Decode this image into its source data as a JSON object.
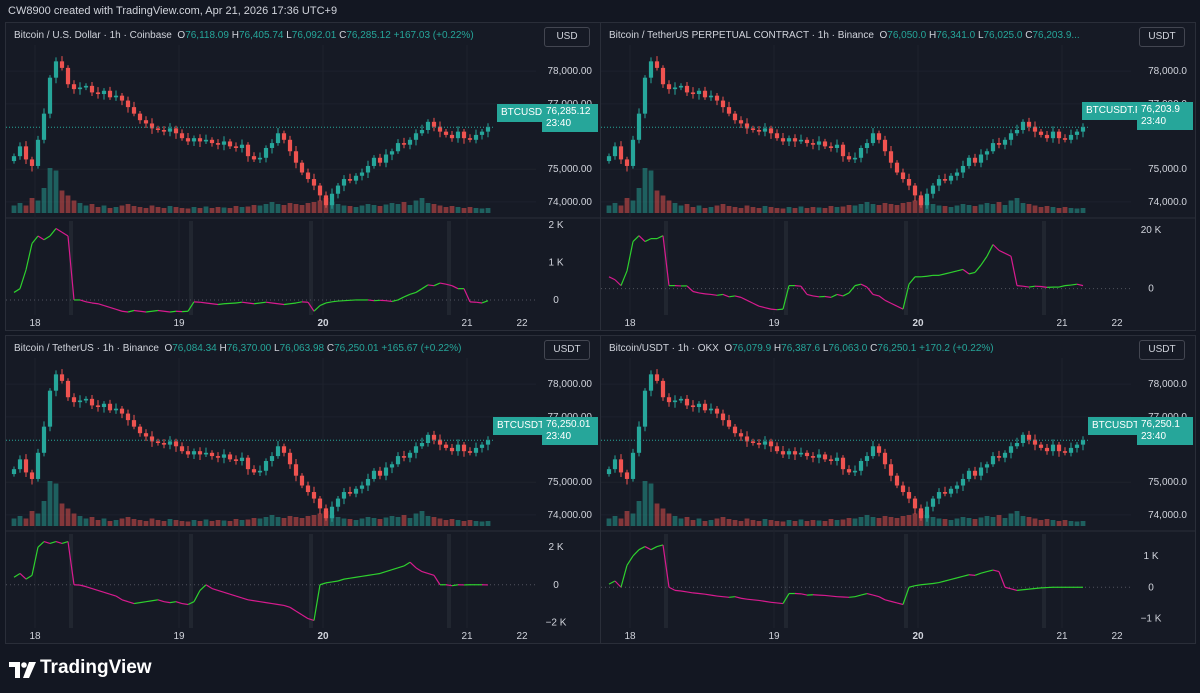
{
  "header": {
    "caption": "CW8900 created with TradingView.com, Apr 21, 2026 17:36 UTC+9"
  },
  "colors": {
    "up": "#26a69a",
    "down": "#ef5350",
    "osc_up": "#2ed12e",
    "osc_down": "#d81b8f",
    "grid": "#1e222d",
    "text": "#d1d4dc",
    "bg": "#161a25"
  },
  "x_labels": [
    "18",
    "19",
    "20",
    "21",
    "22"
  ],
  "panels": [
    {
      "title": "Bitcoin / U.S. Dollar · 1h · Coinbase",
      "o": "76,118.09",
      "h": "76,405.74",
      "l": "76,092.01",
      "c": "76,285.12",
      "change": "+167.03 (+0.22%)",
      "currency": "USD",
      "symbol": "BTCUSD",
      "last_price": "76,285.12",
      "countdown": "23:40",
      "price_labels": [
        "78,000.00",
        "77,000.00",
        "75,000.00",
        "74,000.00"
      ],
      "price_levels": [
        78000,
        77000,
        75000,
        74000
      ],
      "osc_labels": [
        "2 K",
        "1 K",
        "0"
      ],
      "osc_levels": [
        2000,
        1000,
        0
      ],
      "osc_max": 2100,
      "osc_min": -400
    },
    {
      "title": "Bitcoin / TetherUS PERPETUAL CONTRACT · 1h · Binance",
      "o": "76,050.0",
      "h": "76,341.0",
      "l": "76,025.0",
      "c": "76,203.9...",
      "change": "",
      "currency": "USDT",
      "symbol": "BTCUSDT.P",
      "last_price": "76,203.9",
      "countdown": "23:40",
      "price_labels": [
        "78,000.0",
        "77,000.0",
        "75,000.0",
        "74,000.0"
      ],
      "price_levels": [
        78000,
        77000,
        75000,
        74000
      ],
      "osc_labels": [
        "20 K",
        "0"
      ],
      "osc_levels": [
        20000,
        0
      ],
      "osc_max": 23000,
      "osc_min": -9000
    },
    {
      "title": "Bitcoin / TetherUS · 1h · Binance",
      "o": "76,084.34",
      "h": "76,370.00",
      "l": "76,063.98",
      "c": "76,250.01",
      "change": "+165.67 (+0.22%)",
      "currency": "USDT",
      "symbol": "BTCUSDT",
      "last_price": "76,250.01",
      "countdown": "23:40",
      "price_labels": [
        "78,000.00",
        "77,000.00",
        "75,000.00",
        "74,000.00"
      ],
      "price_levels": [
        78000,
        77000,
        75000,
        74000
      ],
      "osc_labels": [
        "2 K",
        "0",
        "−2 K"
      ],
      "osc_levels": [
        2000,
        0,
        -2000
      ],
      "osc_max": 2700,
      "osc_min": -2300
    },
    {
      "title": "Bitcoin/USDT · 1h · OKX",
      "o": "76,079.9",
      "h": "76,387.6",
      "l": "76,063.0",
      "c": "76,250.1",
      "change": "+170.2 (+0.22%)",
      "currency": "USDT",
      "symbol": "BTCUSDT",
      "last_price": "76,250.1",
      "countdown": "23:40",
      "price_labels": [
        "78,000.0",
        "77,000.0",
        "75,000.0",
        "74,000.0"
      ],
      "price_levels": [
        78000,
        77000,
        75000,
        74000
      ],
      "osc_labels": [
        "1 K",
        "0",
        "−1 K"
      ],
      "osc_levels": [
        1000,
        0,
        -1000
      ],
      "osc_max": 1700,
      "osc_min": -1300
    }
  ],
  "price_series": [
    75400,
    75700,
    75300,
    75100,
    75900,
    76700,
    77800,
    78300,
    78100,
    77600,
    77450,
    77500,
    77550,
    77350,
    77300,
    77400,
    77200,
    77250,
    77100,
    76900,
    76700,
    76500,
    76400,
    76250,
    76200,
    76150,
    76250,
    76100,
    75950,
    75850,
    75950,
    75850,
    75900,
    75800,
    75750,
    75850,
    75700,
    75650,
    75750,
    75400,
    75300,
    75350,
    75650,
    75800,
    76100,
    75900,
    75550,
    75200,
    74900,
    74700,
    74500,
    74200,
    73900,
    74250,
    74500,
    74700,
    74650,
    74800,
    74900,
    75100,
    75350,
    75200,
    75450,
    75550,
    75800,
    75750,
    75900,
    76100,
    76200,
    76450,
    76300,
    76150,
    76050,
    75950,
    76150,
    75950,
    75900,
    76050,
    76150,
    76285
  ],
  "volume_series": [
    0.15,
    0.2,
    0.15,
    0.3,
    0.25,
    0.5,
    0.9,
    0.85,
    0.45,
    0.35,
    0.25,
    0.2,
    0.15,
    0.18,
    0.12,
    0.15,
    0.1,
    0.12,
    0.15,
    0.18,
    0.14,
    0.12,
    0.1,
    0.15,
    0.12,
    0.1,
    0.14,
    0.12,
    0.1,
    0.09,
    0.12,
    0.1,
    0.13,
    0.1,
    0.12,
    0.11,
    0.1,
    0.14,
    0.12,
    0.13,
    0.16,
    0.15,
    0.18,
    0.22,
    0.18,
    0.16,
    0.2,
    0.18,
    0.16,
    0.2,
    0.22,
    0.25,
    0.3,
    0.22,
    0.18,
    0.15,
    0.14,
    0.12,
    0.15,
    0.18,
    0.16,
    0.14,
    0.17,
    0.2,
    0.18,
    0.22,
    0.16,
    0.25,
    0.3,
    0.2,
    0.18,
    0.15,
    0.12,
    0.14,
    0.12,
    0.1,
    0.12,
    0.1,
    0.09,
    0.1
  ],
  "osc_series": [
    [
      200,
      300,
      800,
      1500,
      1700,
      1600,
      1700,
      1900,
      1800,
      1700,
      0,
      0,
      -50,
      -80,
      -100,
      -150,
      -200,
      -250,
      -300,
      -320,
      -280,
      -300,
      -320,
      -300,
      -280,
      -300,
      -320,
      -300,
      -310,
      -300,
      -50,
      -60,
      -80,
      -100,
      -120,
      -100,
      -90,
      -80,
      -60,
      -80,
      -100,
      -80,
      -60,
      -80,
      -100,
      -120,
      -100,
      -80,
      -50,
      -60,
      -300,
      -150,
      -80,
      -50,
      -30,
      -20,
      -10,
      0,
      0,
      0,
      -20,
      -10,
      -20,
      -40,
      0,
      80,
      150,
      200,
      300,
      400,
      380,
      450,
      420,
      380,
      300,
      300,
      -50,
      -60,
      -80,
      -20
    ],
    [
      4000,
      3000,
      1000,
      6000,
      16000,
      18000,
      16000,
      17000,
      17000,
      18000,
      1000,
      1000,
      900,
      900,
      -1000,
      -1500,
      -1800,
      -2000,
      -2300,
      -2000,
      -2800,
      -2500,
      -3000,
      -4000,
      -5000,
      -6000,
      -6500,
      -7000,
      -7200,
      -7000,
      1000,
      1000,
      800,
      -2000,
      -2500,
      -2800,
      -2700,
      -3000,
      -2000,
      -2500,
      -1500,
      1000,
      1500,
      500,
      -2000,
      -2500,
      -4000,
      -5000,
      -6000,
      -7000,
      1500,
      4000,
      4000,
      4200,
      4500,
      4500,
      5000,
      5500,
      6000,
      6500,
      5000,
      5500,
      8000,
      11000,
      15000,
      13000,
      12000,
      11000,
      1000,
      800,
      500,
      800,
      700,
      400,
      500,
      500,
      1000,
      1200,
      1500,
      1000
    ],
    [
      400,
      600,
      300,
      500,
      2000,
      2300,
      2200,
      2300,
      2200,
      2300,
      0,
      -20,
      -100,
      -200,
      -300,
      -400,
      -500,
      -600,
      -800,
      -900,
      -1000,
      -950,
      -900,
      -850,
      -800,
      -900,
      -950,
      -900,
      -1000,
      -1050,
      -900,
      -300,
      0,
      -200,
      -300,
      -400,
      -500,
      -600,
      -700,
      -800,
      -850,
      -900,
      -950,
      -1000,
      -1050,
      -1100,
      -1200,
      -1400,
      -1600,
      -1800,
      -1900,
      0,
      100,
      150,
      200,
      300,
      350,
      400,
      450,
      500,
      550,
      600,
      700,
      800,
      900,
      1000,
      1200,
      900,
      700,
      600,
      500,
      0,
      0,
      -50,
      0,
      -10,
      0,
      0,
      0,
      -10
    ],
    [
      100,
      200,
      0,
      700,
      1000,
      1200,
      1300,
      1200,
      1300,
      1350,
      0,
      -100,
      -120,
      -150,
      -180,
      -200,
      -220,
      -250,
      -280,
      -300,
      -320,
      -300,
      -350,
      -380,
      -400,
      -420,
      -450,
      -480,
      -500,
      -520,
      -200,
      -200,
      -210,
      -250,
      -240,
      -250,
      -260,
      -280,
      -300,
      -310,
      -320,
      -300,
      -250,
      -200,
      -250,
      -300,
      -400,
      -450,
      -500,
      -550,
      0,
      50,
      80,
      100,
      120,
      150,
      200,
      250,
      300,
      350,
      400,
      380,
      450,
      500,
      550,
      500,
      0,
      -50,
      -100,
      -80,
      -60,
      -40,
      -20,
      -10,
      0,
      0,
      0,
      0,
      0,
      0
    ]
  ],
  "footer": {
    "brand": "TradingView"
  }
}
